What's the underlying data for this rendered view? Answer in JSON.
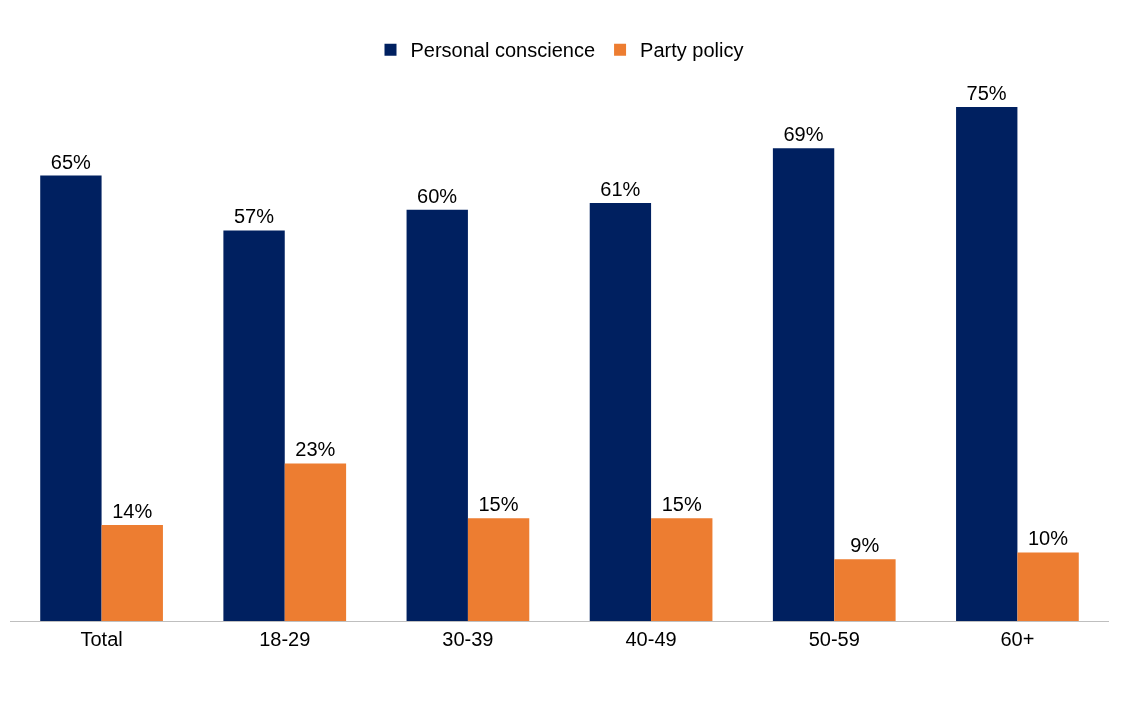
{
  "chart_data": {
    "type": "bar",
    "categories": [
      "Total",
      "18-29",
      "30-39",
      "40-49",
      "50-59",
      "60+"
    ],
    "series": [
      {
        "name": "Personal conscience",
        "color": "#002060",
        "values": [
          65,
          57,
          60,
          61,
          69,
          75
        ],
        "value_labels": [
          "65%",
          "57%",
          "60%",
          "61%",
          "69%",
          "75%"
        ]
      },
      {
        "name": "Party policy",
        "color": "#ed7d31",
        "values": [
          14,
          23,
          15,
          15,
          9,
          10
        ],
        "value_labels": [
          "14%",
          "23%",
          "15%",
          "15%",
          "9%",
          "10%"
        ]
      }
    ],
    "legend": "top",
    "grid": false
  }
}
